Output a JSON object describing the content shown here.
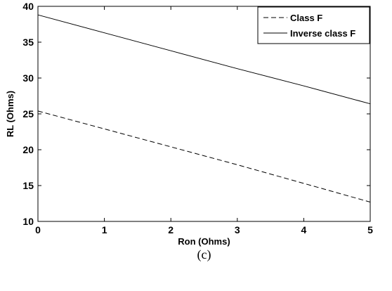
{
  "chart_data": {
    "type": "line",
    "title": "",
    "xlabel": "Ron (Ohms)",
    "ylabel": "RL (Ohms)",
    "xlim": [
      0,
      5
    ],
    "ylim": [
      10,
      40
    ],
    "xticks": [
      "0",
      "1",
      "2",
      "3",
      "4",
      "5"
    ],
    "yticks": [
      "10",
      "15",
      "20",
      "25",
      "30",
      "35",
      "40"
    ],
    "grid": false,
    "legend_position": "top-right",
    "caption": "(c)",
    "series": [
      {
        "name": "Class F",
        "style": "dashed",
        "color": "#000000",
        "x": [
          0,
          1,
          2,
          3,
          4,
          5
        ],
        "y": [
          25.4,
          22.9,
          20.4,
          17.9,
          15.3,
          12.7
        ]
      },
      {
        "name": "Inverse class F",
        "style": "solid",
        "color": "#000000",
        "x": [
          0,
          1,
          2,
          3,
          4,
          5
        ],
        "y": [
          38.8,
          36.3,
          33.8,
          31.3,
          28.9,
          26.4
        ]
      }
    ]
  }
}
